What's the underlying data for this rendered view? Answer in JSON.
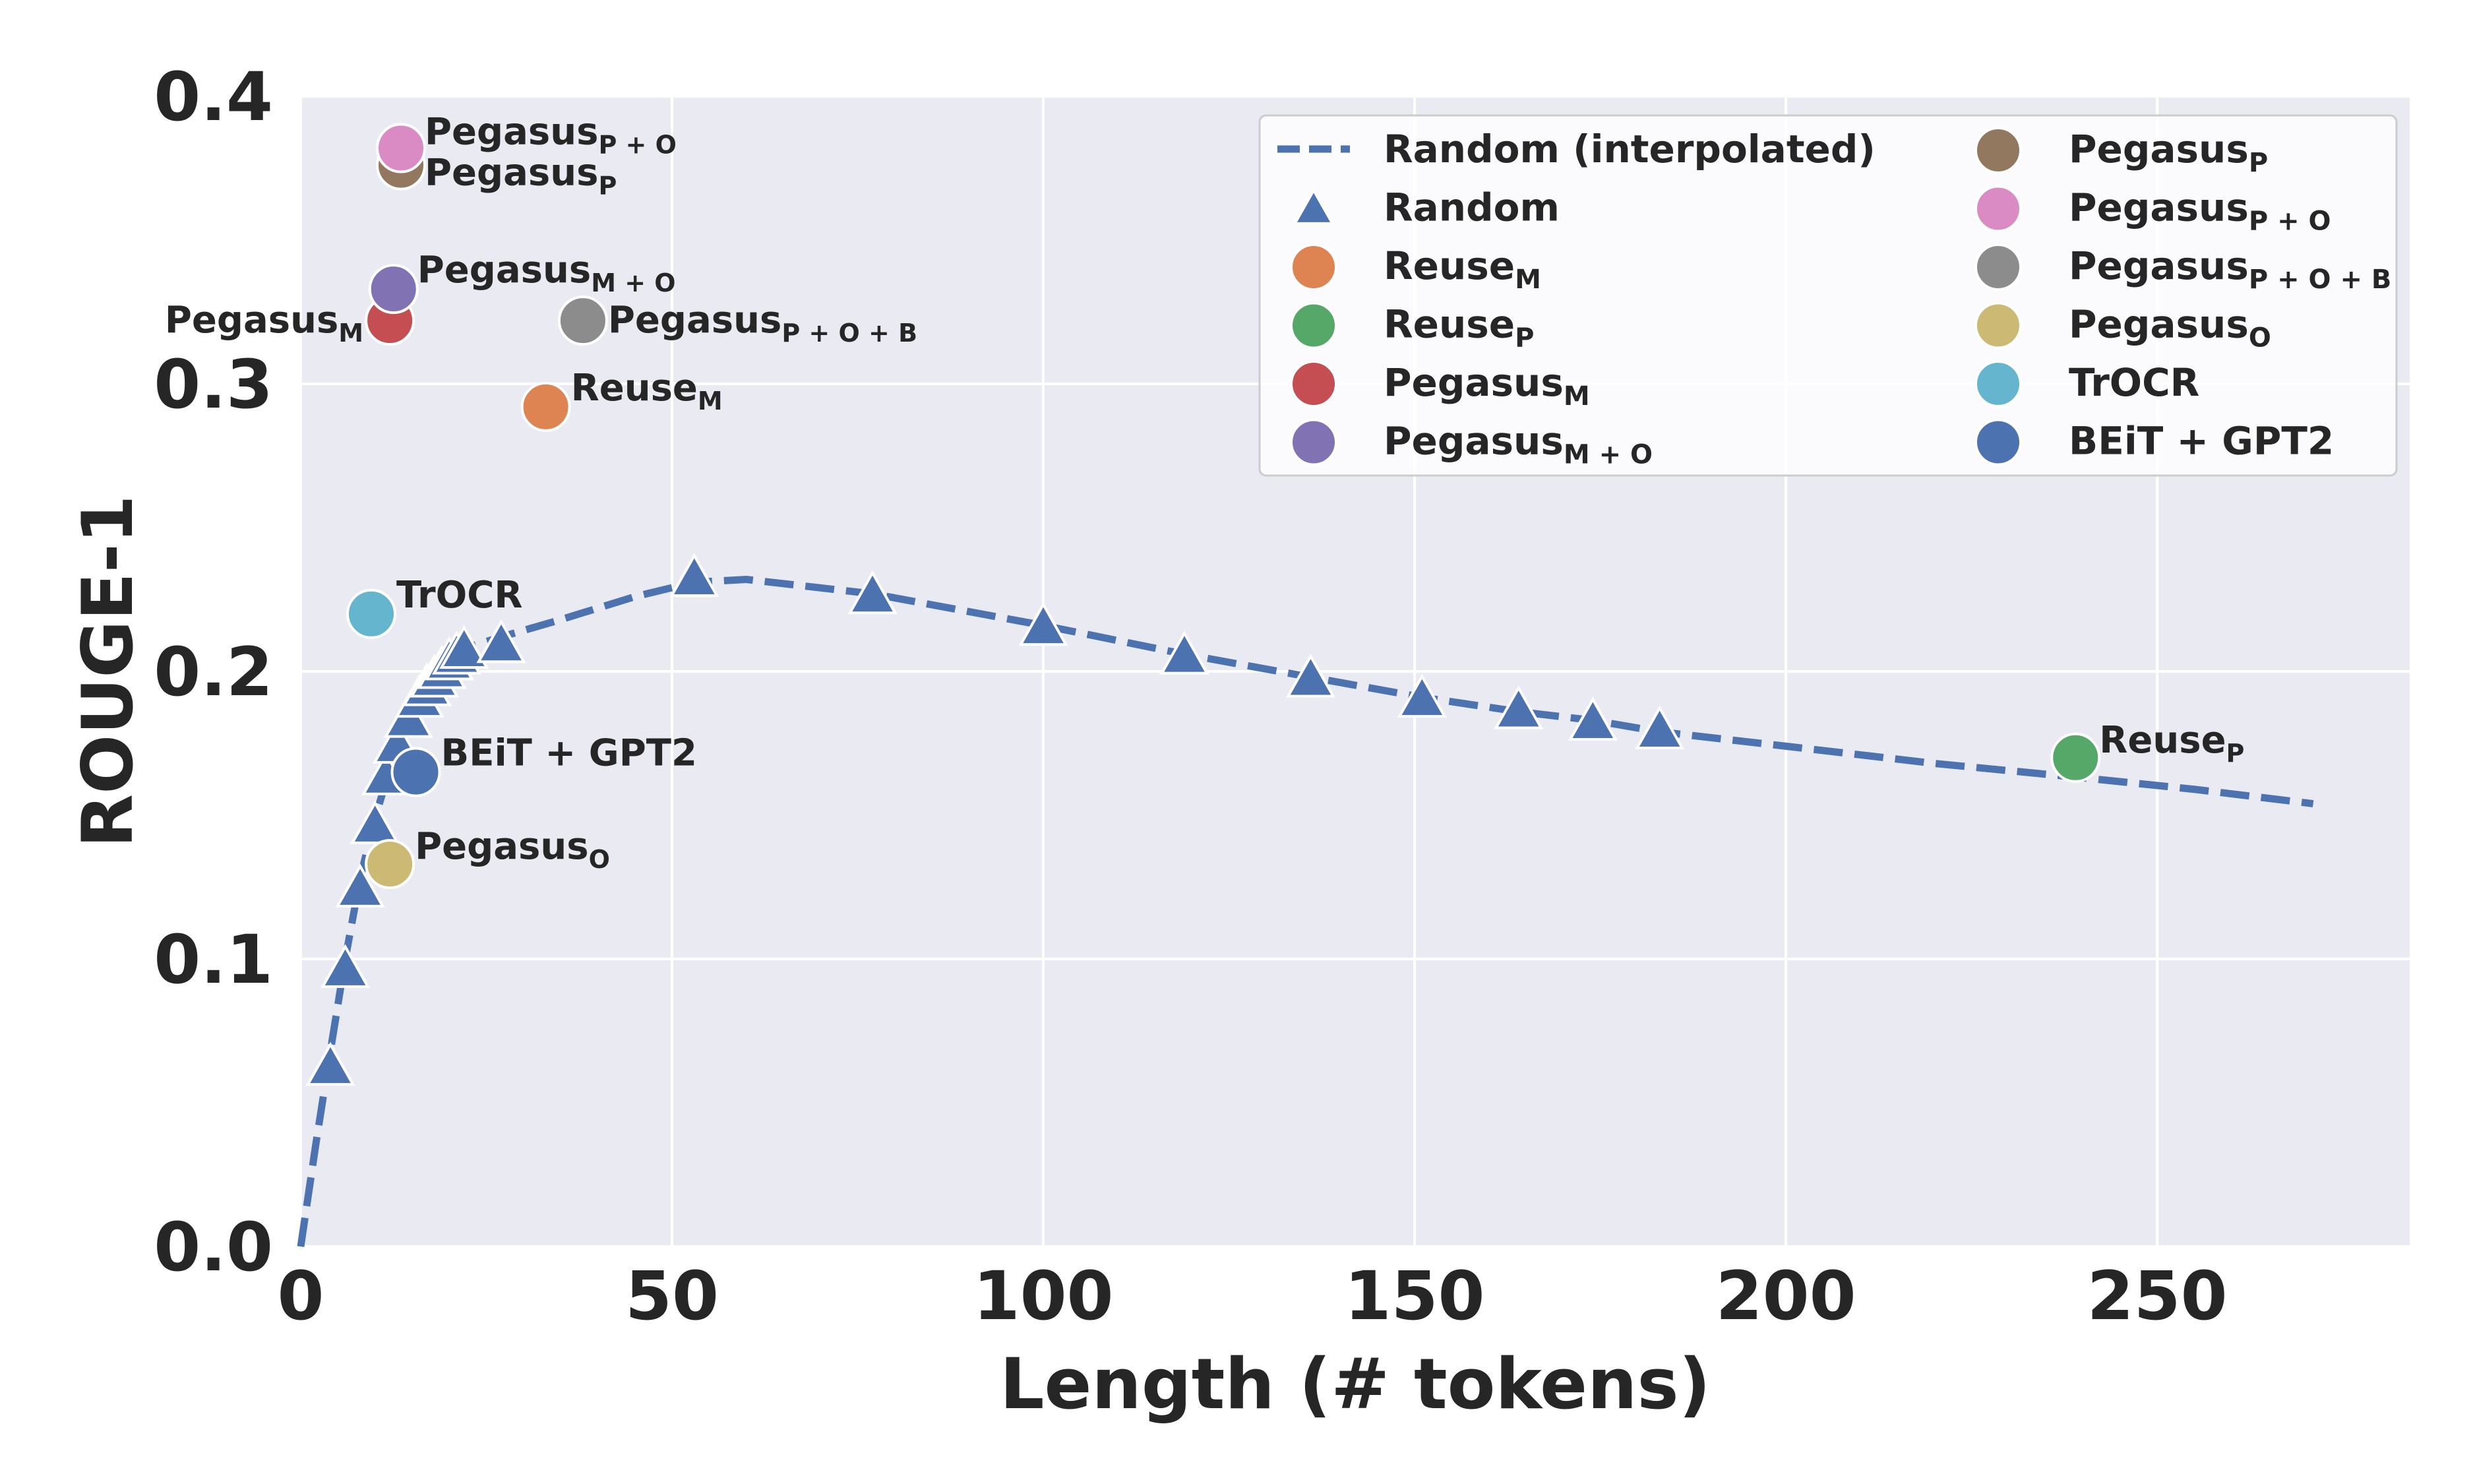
{
  "chart_data": {
    "type": "scatter",
    "xlabel": "Length (# tokens)",
    "ylabel": "ROUGE-1",
    "xlim": [
      0,
      284
    ],
    "ylim": [
      0,
      0.4
    ],
    "xticks": [
      0,
      50,
      100,
      150,
      200,
      250
    ],
    "yticks": [
      0.0,
      0.1,
      0.2,
      0.3,
      0.4
    ],
    "xtick_labels": [
      "0",
      "50",
      "100",
      "150",
      "200",
      "250"
    ],
    "ytick_labels": [
      "0.0",
      "0.1",
      "0.2",
      "0.3",
      "0.4"
    ],
    "grid": true,
    "legend_position": "top-right",
    "series": [
      {
        "name": "Random (interpolated)",
        "kind": "dashed-line",
        "color": "#4c72b0",
        "x": [
          0,
          2,
          4,
          6,
          8,
          10,
          12,
          14,
          16,
          18,
          20,
          22,
          27,
          35,
          45,
          53,
          60,
          77,
          100,
          119,
          136,
          151,
          164,
          174,
          183,
          200,
          220,
          240,
          255,
          271
        ],
        "y": [
          0.0,
          0.035,
          0.068,
          0.1,
          0.128,
          0.149,
          0.166,
          0.179,
          0.19,
          0.198,
          0.204,
          0.208,
          0.212,
          0.218,
          0.226,
          0.231,
          0.232,
          0.227,
          0.216,
          0.206,
          0.198,
          0.191,
          0.186,
          0.183,
          0.179,
          0.174,
          0.168,
          0.163,
          0.159,
          0.154
        ]
      },
      {
        "name": "Random",
        "kind": "triangle",
        "color": "#4c72b0",
        "x": [
          4,
          6,
          8,
          10,
          11.5,
          13,
          14.5,
          16,
          17,
          18,
          19,
          20,
          21,
          22,
          27,
          53,
          77,
          100,
          119,
          136,
          151,
          164,
          174,
          183
        ],
        "y": [
          0.062,
          0.096,
          0.124,
          0.146,
          0.163,
          0.174,
          0.183,
          0.19,
          0.194,
          0.197,
          0.2,
          0.203,
          0.205,
          0.207,
          0.209,
          0.232,
          0.226,
          0.215,
          0.205,
          0.197,
          0.19,
          0.186,
          0.182,
          0.179
        ]
      },
      {
        "name": "Reuse",
        "sub": "M",
        "kind": "point",
        "color": "#dd8452",
        "x": [
          33
        ],
        "y": [
          0.292
        ],
        "annotation": "Reuse",
        "annotation_sub": "M"
      },
      {
        "name": "Reuse",
        "sub": "P",
        "kind": "point",
        "color": "#55a868",
        "x": [
          239
        ],
        "y": [
          0.17
        ],
        "annotation": "Reuse",
        "annotation_sub": "P"
      },
      {
        "name": "Pegasus",
        "sub": "M",
        "kind": "point",
        "color": "#c44e52",
        "x": [
          12
        ],
        "y": [
          0.322
        ],
        "annotation": "Pegasus",
        "annotation_sub": "M"
      },
      {
        "name": "Pegasus",
        "sub": "M + O",
        "kind": "point",
        "color": "#8172b3",
        "x": [
          12.5
        ],
        "y": [
          0.333
        ],
        "annotation": "Pegasus",
        "annotation_sub": "M + O"
      },
      {
        "name": "Pegasus",
        "sub": "P",
        "kind": "point",
        "color": "#937860",
        "x": [
          13.5
        ],
        "y": [
          0.376
        ],
        "annotation": "Pegasus",
        "annotation_sub": "P"
      },
      {
        "name": "Pegasus",
        "sub": "P + O",
        "kind": "point",
        "color": "#da8bc3",
        "x": [
          13.5
        ],
        "y": [
          0.382
        ],
        "annotation": "Pegasus",
        "annotation_sub": "P + O"
      },
      {
        "name": "Pegasus",
        "sub": "P + O + B",
        "kind": "point",
        "color": "#8c8c8c",
        "x": [
          38
        ],
        "y": [
          0.322
        ],
        "annotation": "Pegasus",
        "annotation_sub": "P + O + B"
      },
      {
        "name": "Pegasus",
        "sub": "O",
        "kind": "point",
        "color": "#ccb974",
        "x": [
          12
        ],
        "y": [
          0.133
        ],
        "annotation": "Pegasus",
        "annotation_sub": "O"
      },
      {
        "name": "TrOCR",
        "sub": "",
        "kind": "point",
        "color": "#64b5cd",
        "x": [
          9.5
        ],
        "y": [
          0.22
        ],
        "annotation": "TrOCR",
        "annotation_sub": ""
      },
      {
        "name": "BEiT + GPT2",
        "sub": "",
        "kind": "point",
        "color": "#4c72b0",
        "x": [
          15.5
        ],
        "y": [
          0.165
        ],
        "annotation": "BEiT + GPT2",
        "annotation_sub": ""
      }
    ]
  }
}
